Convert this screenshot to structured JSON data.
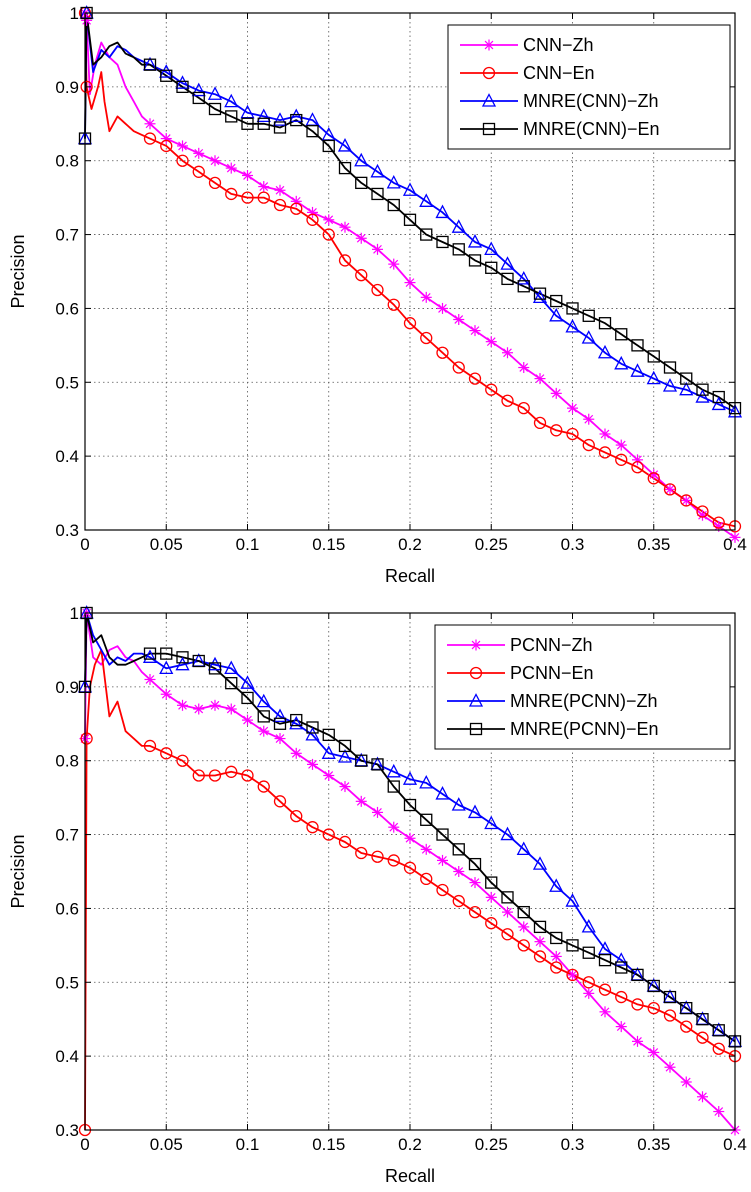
{
  "chart_data": [
    {
      "type": "line",
      "xlabel": "Recall",
      "ylabel": "Precision",
      "xlim": [
        0,
        0.4
      ],
      "ylim": [
        0.3,
        1
      ],
      "xticks": [
        "0",
        "0.05",
        "0.1",
        "0.15",
        "0.2",
        "0.25",
        "0.3",
        "0.35",
        "0.4"
      ],
      "yticks": [
        "0.3",
        "0.4",
        "0.5",
        "0.6",
        "0.7",
        "0.8",
        "0.9",
        "1"
      ],
      "grid": true,
      "legend_position": "top-right",
      "series": [
        {
          "name": "CNN−Zh",
          "color": "#ff00ff",
          "marker": "star",
          "x": [
            0,
            0.001,
            0.003,
            0.006,
            0.01,
            0.015,
            0.02,
            0.025,
            0.03,
            0.035,
            0.04,
            0.05,
            0.06,
            0.07,
            0.08,
            0.09,
            0.1,
            0.11,
            0.12,
            0.13,
            0.14,
            0.15,
            0.16,
            0.17,
            0.18,
            0.19,
            0.2,
            0.21,
            0.22,
            0.23,
            0.24,
            0.25,
            0.26,
            0.27,
            0.28,
            0.29,
            0.3,
            0.31,
            0.32,
            0.33,
            0.34,
            0.35,
            0.36,
            0.37,
            0.38,
            0.39,
            0.4
          ],
          "y": [
            1.0,
            0.99,
            0.89,
            0.93,
            0.96,
            0.94,
            0.93,
            0.9,
            0.88,
            0.86,
            0.85,
            0.83,
            0.82,
            0.81,
            0.8,
            0.79,
            0.78,
            0.765,
            0.76,
            0.745,
            0.73,
            0.72,
            0.71,
            0.695,
            0.68,
            0.66,
            0.635,
            0.615,
            0.6,
            0.585,
            0.57,
            0.555,
            0.54,
            0.52,
            0.505,
            0.485,
            0.465,
            0.45,
            0.43,
            0.415,
            0.395,
            0.375,
            0.355,
            0.34,
            0.32,
            0.305,
            0.29
          ]
        },
        {
          "name": "CNN−En",
          "color": "#ff0000",
          "marker": "circle",
          "x": [
            0,
            0.001,
            0.004,
            0.008,
            0.01,
            0.012,
            0.015,
            0.02,
            0.025,
            0.03,
            0.035,
            0.04,
            0.05,
            0.06,
            0.07,
            0.08,
            0.09,
            0.1,
            0.11,
            0.12,
            0.13,
            0.14,
            0.15,
            0.16,
            0.17,
            0.18,
            0.19,
            0.2,
            0.21,
            0.22,
            0.23,
            0.24,
            0.25,
            0.26,
            0.27,
            0.28,
            0.29,
            0.3,
            0.31,
            0.32,
            0.33,
            0.34,
            0.35,
            0.36,
            0.37,
            0.38,
            0.39,
            0.4
          ],
          "y": [
            1.0,
            0.9,
            0.87,
            0.9,
            0.92,
            0.88,
            0.84,
            0.86,
            0.85,
            0.84,
            0.835,
            0.83,
            0.82,
            0.8,
            0.785,
            0.77,
            0.755,
            0.75,
            0.75,
            0.74,
            0.735,
            0.72,
            0.7,
            0.665,
            0.645,
            0.625,
            0.605,
            0.58,
            0.56,
            0.54,
            0.52,
            0.505,
            0.49,
            0.475,
            0.465,
            0.445,
            0.435,
            0.43,
            0.415,
            0.405,
            0.395,
            0.385,
            0.37,
            0.355,
            0.34,
            0.325,
            0.31,
            0.305
          ]
        },
        {
          "name": "MNRE(CNN)−Zh",
          "color": "#0000ff",
          "marker": "triangle",
          "x": [
            0,
            0.001,
            0.005,
            0.01,
            0.015,
            0.02,
            0.025,
            0.03,
            0.035,
            0.04,
            0.05,
            0.06,
            0.07,
            0.08,
            0.09,
            0.1,
            0.11,
            0.12,
            0.13,
            0.14,
            0.15,
            0.16,
            0.17,
            0.18,
            0.19,
            0.2,
            0.21,
            0.22,
            0.23,
            0.24,
            0.25,
            0.26,
            0.27,
            0.28,
            0.29,
            0.3,
            0.31,
            0.32,
            0.33,
            0.34,
            0.35,
            0.36,
            0.37,
            0.38,
            0.39,
            0.4
          ],
          "y": [
            0.83,
            1.0,
            0.92,
            0.95,
            0.94,
            0.955,
            0.95,
            0.94,
            0.935,
            0.93,
            0.92,
            0.905,
            0.895,
            0.89,
            0.88,
            0.865,
            0.86,
            0.855,
            0.86,
            0.855,
            0.835,
            0.82,
            0.8,
            0.785,
            0.77,
            0.76,
            0.745,
            0.73,
            0.71,
            0.69,
            0.68,
            0.66,
            0.64,
            0.615,
            0.59,
            0.575,
            0.56,
            0.54,
            0.525,
            0.515,
            0.505,
            0.495,
            0.49,
            0.48,
            0.47,
            0.46
          ]
        },
        {
          "name": "MNRE(CNN)−En",
          "color": "#000000",
          "marker": "square",
          "x": [
            0,
            0.001,
            0.005,
            0.01,
            0.015,
            0.02,
            0.025,
            0.03,
            0.035,
            0.04,
            0.05,
            0.06,
            0.07,
            0.08,
            0.09,
            0.1,
            0.11,
            0.12,
            0.13,
            0.14,
            0.15,
            0.16,
            0.17,
            0.18,
            0.19,
            0.2,
            0.21,
            0.22,
            0.23,
            0.24,
            0.25,
            0.26,
            0.27,
            0.28,
            0.29,
            0.3,
            0.31,
            0.32,
            0.33,
            0.34,
            0.35,
            0.36,
            0.37,
            0.38,
            0.39,
            0.4
          ],
          "y": [
            0.83,
            1.0,
            0.93,
            0.94,
            0.955,
            0.96,
            0.945,
            0.94,
            0.93,
            0.93,
            0.915,
            0.9,
            0.885,
            0.87,
            0.86,
            0.85,
            0.85,
            0.845,
            0.855,
            0.84,
            0.82,
            0.79,
            0.77,
            0.755,
            0.74,
            0.72,
            0.7,
            0.69,
            0.68,
            0.665,
            0.655,
            0.64,
            0.63,
            0.62,
            0.61,
            0.6,
            0.59,
            0.58,
            0.565,
            0.55,
            0.535,
            0.52,
            0.505,
            0.49,
            0.48,
            0.465
          ]
        }
      ]
    },
    {
      "type": "line",
      "xlabel": "Recall",
      "ylabel": "Precision",
      "xlim": [
        0,
        0.4
      ],
      "ylim": [
        0.3,
        1
      ],
      "xticks": [
        "0",
        "0.05",
        "0.1",
        "0.15",
        "0.2",
        "0.25",
        "0.3",
        "0.35",
        "0.4"
      ],
      "yticks": [
        "0.3",
        "0.4",
        "0.5",
        "0.6",
        "0.7",
        "0.8",
        "0.9",
        "1"
      ],
      "grid": true,
      "legend_position": "top-right",
      "series": [
        {
          "name": "PCNN−Zh",
          "color": "#ff00ff",
          "marker": "star",
          "x": [
            0,
            0.001,
            0.005,
            0.01,
            0.015,
            0.02,
            0.025,
            0.03,
            0.035,
            0.04,
            0.05,
            0.06,
            0.07,
            0.08,
            0.09,
            0.1,
            0.11,
            0.12,
            0.13,
            0.14,
            0.15,
            0.16,
            0.17,
            0.18,
            0.19,
            0.2,
            0.21,
            0.22,
            0.23,
            0.24,
            0.25,
            0.26,
            0.27,
            0.28,
            0.29,
            0.3,
            0.31,
            0.32,
            0.33,
            0.34,
            0.35,
            0.36,
            0.37,
            0.38,
            0.39,
            0.4
          ],
          "y": [
            0.83,
            1.0,
            0.94,
            0.93,
            0.95,
            0.955,
            0.94,
            0.935,
            0.92,
            0.91,
            0.89,
            0.875,
            0.87,
            0.875,
            0.87,
            0.855,
            0.84,
            0.83,
            0.81,
            0.795,
            0.78,
            0.765,
            0.745,
            0.73,
            0.71,
            0.695,
            0.68,
            0.665,
            0.65,
            0.635,
            0.615,
            0.595,
            0.575,
            0.555,
            0.535,
            0.51,
            0.485,
            0.46,
            0.44,
            0.42,
            0.405,
            0.385,
            0.365,
            0.345,
            0.325,
            0.3
          ]
        },
        {
          "name": "PCNN−En",
          "color": "#ff0000",
          "marker": "circle",
          "x": [
            0,
            0.001,
            0.003,
            0.006,
            0.01,
            0.015,
            0.02,
            0.025,
            0.03,
            0.035,
            0.04,
            0.05,
            0.06,
            0.07,
            0.08,
            0.09,
            0.1,
            0.11,
            0.12,
            0.13,
            0.14,
            0.15,
            0.16,
            0.17,
            0.18,
            0.19,
            0.2,
            0.21,
            0.22,
            0.23,
            0.24,
            0.25,
            0.26,
            0.27,
            0.28,
            0.29,
            0.3,
            0.31,
            0.32,
            0.33,
            0.34,
            0.35,
            0.36,
            0.37,
            0.38,
            0.39,
            0.4
          ],
          "y": [
            0.3,
            0.83,
            0.9,
            0.93,
            0.95,
            0.86,
            0.88,
            0.84,
            0.83,
            0.82,
            0.82,
            0.81,
            0.8,
            0.78,
            0.78,
            0.785,
            0.78,
            0.765,
            0.745,
            0.725,
            0.71,
            0.7,
            0.69,
            0.675,
            0.67,
            0.665,
            0.655,
            0.64,
            0.625,
            0.61,
            0.595,
            0.58,
            0.565,
            0.55,
            0.535,
            0.52,
            0.51,
            0.5,
            0.49,
            0.48,
            0.47,
            0.465,
            0.455,
            0.44,
            0.425,
            0.41,
            0.4
          ]
        },
        {
          "name": "MNRE(PCNN)−Zh",
          "color": "#0000ff",
          "marker": "triangle",
          "x": [
            0,
            0.001,
            0.005,
            0.01,
            0.015,
            0.02,
            0.025,
            0.03,
            0.035,
            0.04,
            0.05,
            0.06,
            0.07,
            0.08,
            0.09,
            0.1,
            0.11,
            0.12,
            0.13,
            0.14,
            0.15,
            0.16,
            0.17,
            0.18,
            0.19,
            0.2,
            0.21,
            0.22,
            0.23,
            0.24,
            0.25,
            0.26,
            0.27,
            0.28,
            0.29,
            0.3,
            0.31,
            0.32,
            0.33,
            0.34,
            0.35,
            0.36,
            0.37,
            0.38,
            0.39,
            0.4
          ],
          "y": [
            0.9,
            1.0,
            0.97,
            0.95,
            0.93,
            0.94,
            0.935,
            0.945,
            0.945,
            0.94,
            0.925,
            0.93,
            0.935,
            0.93,
            0.925,
            0.905,
            0.88,
            0.86,
            0.85,
            0.835,
            0.81,
            0.805,
            0.8,
            0.795,
            0.785,
            0.775,
            0.77,
            0.755,
            0.74,
            0.73,
            0.715,
            0.7,
            0.68,
            0.66,
            0.63,
            0.61,
            0.575,
            0.545,
            0.53,
            0.51,
            0.495,
            0.48,
            0.465,
            0.45,
            0.435,
            0.42
          ]
        },
        {
          "name": "MNRE(PCNN)−En",
          "color": "#000000",
          "marker": "square",
          "x": [
            0,
            0.001,
            0.005,
            0.01,
            0.015,
            0.02,
            0.025,
            0.03,
            0.035,
            0.04,
            0.05,
            0.06,
            0.07,
            0.08,
            0.09,
            0.1,
            0.11,
            0.12,
            0.13,
            0.14,
            0.15,
            0.16,
            0.17,
            0.18,
            0.19,
            0.2,
            0.21,
            0.22,
            0.23,
            0.24,
            0.25,
            0.26,
            0.27,
            0.28,
            0.29,
            0.3,
            0.31,
            0.32,
            0.33,
            0.34,
            0.35,
            0.36,
            0.37,
            0.38,
            0.39,
            0.4
          ],
          "y": [
            0.9,
            1.0,
            0.96,
            0.97,
            0.94,
            0.93,
            0.93,
            0.935,
            0.94,
            0.945,
            0.945,
            0.94,
            0.935,
            0.925,
            0.905,
            0.885,
            0.86,
            0.85,
            0.855,
            0.845,
            0.835,
            0.82,
            0.8,
            0.795,
            0.765,
            0.74,
            0.72,
            0.7,
            0.68,
            0.66,
            0.635,
            0.615,
            0.595,
            0.575,
            0.56,
            0.55,
            0.54,
            0.53,
            0.52,
            0.51,
            0.495,
            0.48,
            0.465,
            0.45,
            0.435,
            0.42
          ]
        }
      ]
    }
  ]
}
